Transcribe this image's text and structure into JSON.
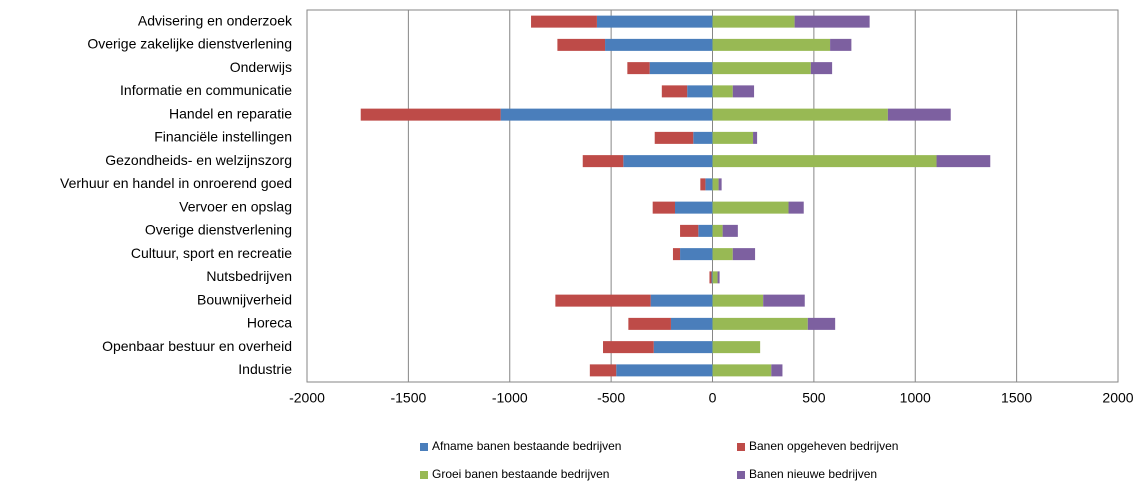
{
  "chart_data": {
    "type": "bar",
    "orientation": "horizontal",
    "stacked": true,
    "categories": [
      "Advisering en onderzoek",
      "Overige zakelijke dienstverlening",
      "Onderwijs",
      "Informatie en communicatie",
      "Handel en reparatie",
      "Financiële instellingen",
      "Gezondheids- en welzijnszorg",
      "Verhuur en handel in onroerend goed",
      "Vervoer en opslag",
      "Overige dienstverlening",
      "Cultuur, sport en recreatie",
      "Nutsbedrijven",
      "Bouwnijverheid",
      "Horeca",
      "Openbaar bestuur en overheid",
      "Industrie"
    ],
    "series": [
      {
        "name": "Afname banen bestaande bedrijven",
        "color": "#4a7ebb",
        "values": [
          -570,
          -530,
          -310,
          -125,
          -1045,
          -95,
          -440,
          -35,
          -185,
          -70,
          -160,
          -5,
          -305,
          -205,
          -290,
          -475
        ]
      },
      {
        "name": "Banen opgeheven bedrijven",
        "color": "#be4b48",
        "values": [
          -325,
          -235,
          -110,
          -125,
          -690,
          -190,
          -200,
          -25,
          -110,
          -90,
          -35,
          -10,
          -470,
          -210,
          -250,
          -130
        ]
      },
      {
        "name": "Groei banen bestaande bedrijven",
        "color": "#98b954",
        "values": [
          405,
          580,
          485,
          100,
          865,
          200,
          1105,
          30,
          375,
          50,
          100,
          25,
          250,
          470,
          235,
          290
        ]
      },
      {
        "name": "Banen nieuwe bedrijven",
        "color": "#7d60a0",
        "values": [
          370,
          105,
          105,
          105,
          310,
          20,
          265,
          15,
          75,
          75,
          110,
          10,
          205,
          135,
          0,
          55
        ]
      }
    ],
    "xlim": [
      -2000,
      2000
    ],
    "xticks": [
      -2000,
      -1500,
      -1000,
      -500,
      0,
      500,
      1000,
      1500,
      2000
    ],
    "grid": true,
    "legend": "bottom"
  }
}
